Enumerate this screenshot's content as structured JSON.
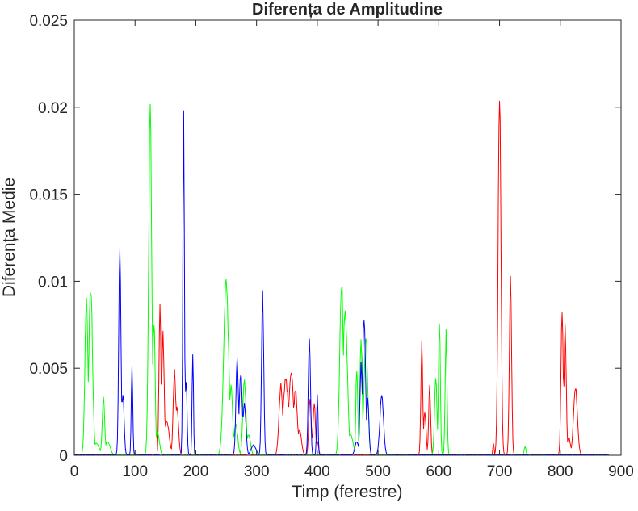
{
  "chart_data": {
    "type": "line",
    "title": "Diferența de Amplitudine",
    "xlabel": "Timp (ferestre)",
    "ylabel": "Diferența Medie",
    "xlim": [
      0,
      900
    ],
    "ylim": [
      0,
      0.025
    ],
    "xticks": [
      0,
      100,
      200,
      300,
      400,
      500,
      600,
      700,
      800,
      900
    ],
    "yticks": [
      0,
      0.005,
      0.01,
      0.015,
      0.02,
      0.025
    ],
    "xtick_labels": [
      "0",
      "100",
      "200",
      "300",
      "400",
      "500",
      "600",
      "700",
      "800",
      "900"
    ],
    "ytick_labels": [
      "0",
      "0.005",
      "0.01",
      "0.015",
      "0.02",
      "0.025"
    ],
    "grid": false,
    "box": true,
    "series": [
      {
        "color": "#ff0000",
        "peaks": [
          {
            "x": 141,
            "y": 0.0088,
            "w": 1.6
          },
          {
            "x": 146,
            "y": 0.007,
            "w": 2.0
          },
          {
            "x": 152,
            "y": 0.002,
            "w": 4.0
          },
          {
            "x": 165,
            "y": 0.0049,
            "w": 2.2
          },
          {
            "x": 169,
            "y": 0.0028,
            "w": 2.5
          },
          {
            "x": 340,
            "y": 0.0041,
            "w": 3.0
          },
          {
            "x": 348,
            "y": 0.0044,
            "w": 4.5
          },
          {
            "x": 357,
            "y": 0.0048,
            "w": 4.0
          },
          {
            "x": 364,
            "y": 0.0038,
            "w": 3.0
          },
          {
            "x": 371,
            "y": 0.0015,
            "w": 3.0
          },
          {
            "x": 388,
            "y": 0.0032,
            "w": 2.0
          },
          {
            "x": 395,
            "y": 0.003,
            "w": 2.0
          },
          {
            "x": 400,
            "y": 0.0008,
            "w": 2.0
          },
          {
            "x": 572,
            "y": 0.0065,
            "w": 1.5
          },
          {
            "x": 577,
            "y": 0.0025,
            "w": 2.0
          },
          {
            "x": 585,
            "y": 0.004,
            "w": 1.6
          },
          {
            "x": 690,
            "y": 0.0007,
            "w": 1.0
          },
          {
            "x": 700,
            "y": 0.021,
            "w": 2.3
          },
          {
            "x": 718,
            "y": 0.0103,
            "w": 1.8
          },
          {
            "x": 803,
            "y": 0.0087,
            "w": 1.8
          },
          {
            "x": 808,
            "y": 0.0075,
            "w": 1.8
          },
          {
            "x": 814,
            "y": 0.001,
            "w": 3.0
          },
          {
            "x": 825,
            "y": 0.0039,
            "w": 3.2
          }
        ]
      },
      {
        "color": "#00ff00",
        "peaks": [
          {
            "x": 20,
            "y": 0.009,
            "w": 2.5
          },
          {
            "x": 27,
            "y": 0.0099,
            "w": 3.0
          },
          {
            "x": 36,
            "y": 0.0007,
            "w": 5.0
          },
          {
            "x": 48,
            "y": 0.0034,
            "w": 2.0
          },
          {
            "x": 55,
            "y": 0.0008,
            "w": 4.0
          },
          {
            "x": 125,
            "y": 0.0199,
            "w": 2.5
          },
          {
            "x": 131,
            "y": 0.008,
            "w": 2.0
          },
          {
            "x": 137,
            "y": 0.0014,
            "w": 3.0
          },
          {
            "x": 250,
            "y": 0.0101,
            "w": 4.0
          },
          {
            "x": 258,
            "y": 0.004,
            "w": 2.5
          },
          {
            "x": 266,
            "y": 0.0018,
            "w": 3.0
          },
          {
            "x": 280,
            "y": 0.0045,
            "w": 2.5
          },
          {
            "x": 287,
            "y": 0.0012,
            "w": 3.0
          },
          {
            "x": 440,
            "y": 0.01,
            "w": 3.0
          },
          {
            "x": 446,
            "y": 0.0085,
            "w": 3.5
          },
          {
            "x": 455,
            "y": 0.0012,
            "w": 4.0
          },
          {
            "x": 465,
            "y": 0.0052,
            "w": 1.5
          },
          {
            "x": 472,
            "y": 0.0065,
            "w": 2.0
          },
          {
            "x": 480,
            "y": 0.0069,
            "w": 3.0
          },
          {
            "x": 595,
            "y": 0.0045,
            "w": 2.0
          },
          {
            "x": 601,
            "y": 0.008,
            "w": 1.5
          },
          {
            "x": 612,
            "y": 0.0071,
            "w": 1.5
          },
          {
            "x": 742,
            "y": 0.0005,
            "w": 1.5
          }
        ]
      },
      {
        "color": "#0000ff",
        "peaks": [
          {
            "x": 75,
            "y": 0.012,
            "w": 1.8
          },
          {
            "x": 80,
            "y": 0.0035,
            "w": 2.0
          },
          {
            "x": 95,
            "y": 0.0055,
            "w": 1.2
          },
          {
            "x": 180,
            "y": 0.0193,
            "w": 1.3
          },
          {
            "x": 184,
            "y": 0.0045,
            "w": 1.5
          },
          {
            "x": 195,
            "y": 0.0061,
            "w": 1.1
          },
          {
            "x": 268,
            "y": 0.0057,
            "w": 2.0
          },
          {
            "x": 274,
            "y": 0.0048,
            "w": 2.5
          },
          {
            "x": 280,
            "y": 0.003,
            "w": 2.5
          },
          {
            "x": 295,
            "y": 0.0006,
            "w": 4.0
          },
          {
            "x": 310,
            "y": 0.0093,
            "w": 1.8
          },
          {
            "x": 387,
            "y": 0.007,
            "w": 1.8
          },
          {
            "x": 400,
            "y": 0.0035,
            "w": 1.2
          },
          {
            "x": 465,
            "y": 0.0008,
            "w": 3.0
          },
          {
            "x": 472,
            "y": 0.0052,
            "w": 1.8
          },
          {
            "x": 477,
            "y": 0.0078,
            "w": 2.5
          },
          {
            "x": 483,
            "y": 0.0032,
            "w": 2.0
          },
          {
            "x": 506,
            "y": 0.0034,
            "w": 3.0
          }
        ]
      }
    ]
  }
}
